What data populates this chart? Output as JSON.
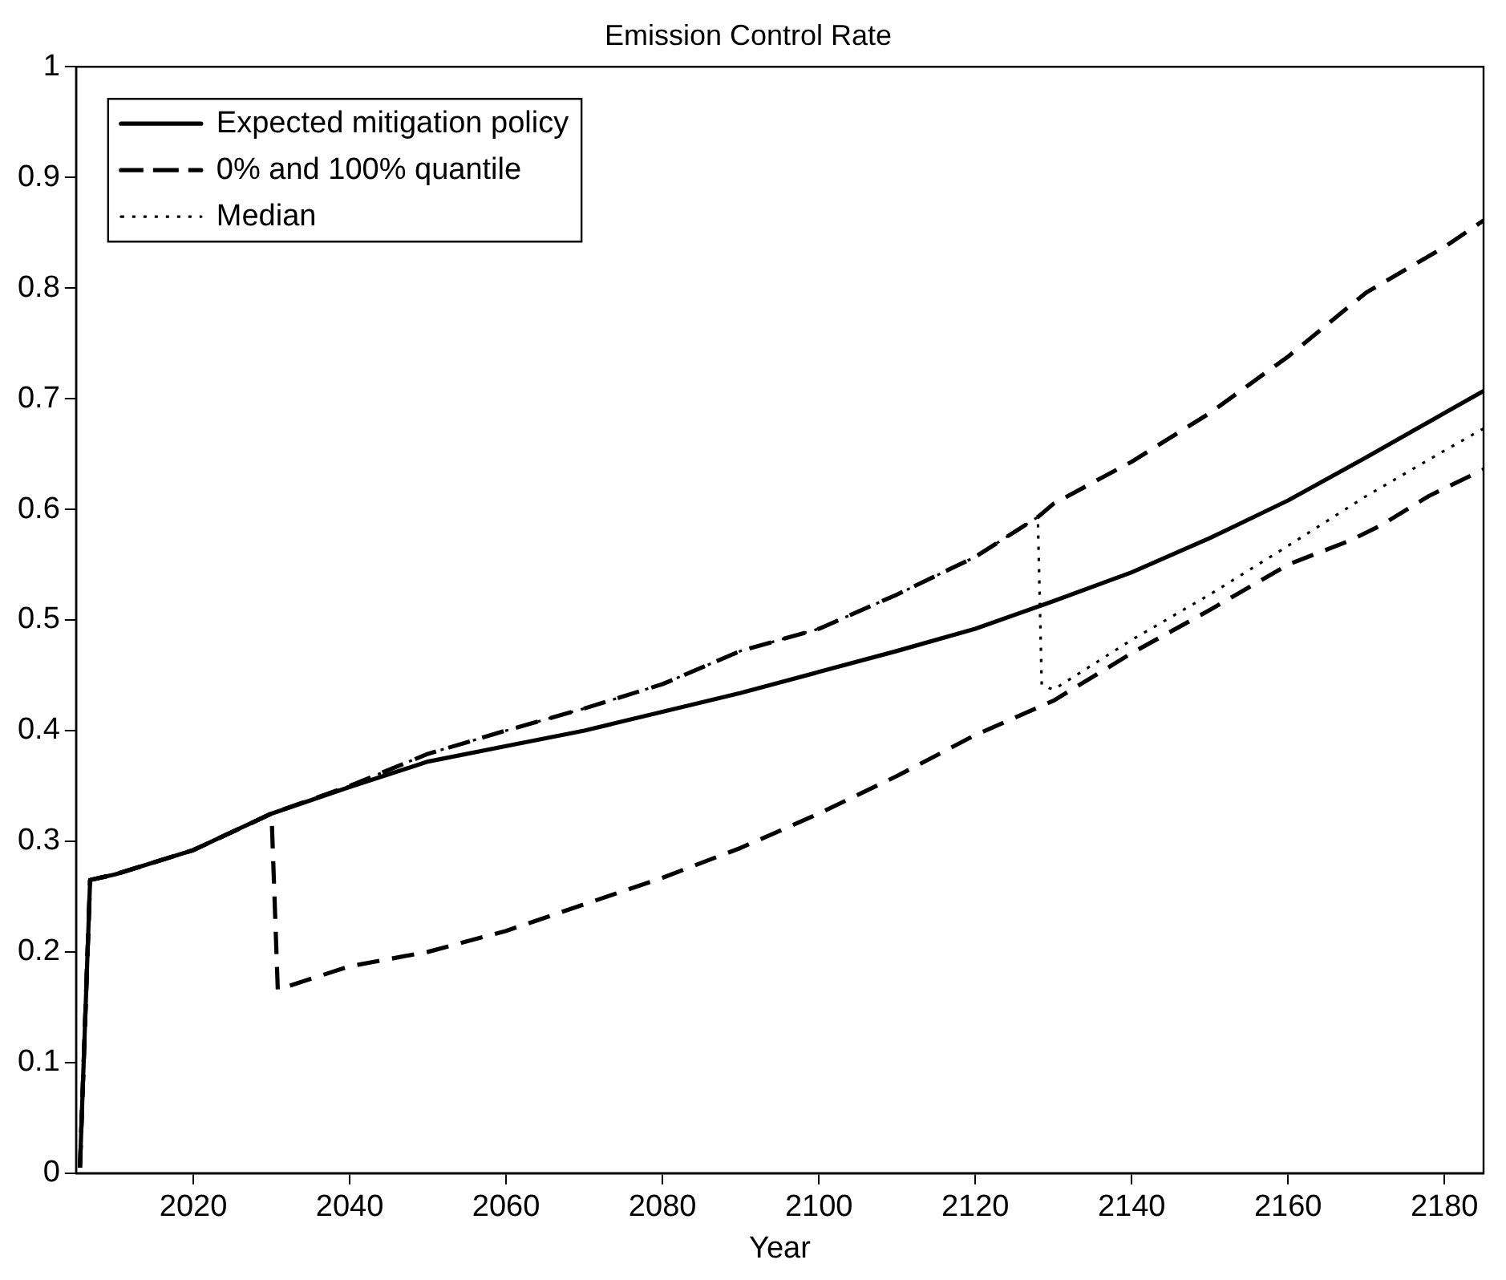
{
  "chart_data": {
    "type": "line",
    "title": "Emission Control Rate",
    "xlabel": "Year",
    "xlim": [
      2005,
      2185
    ],
    "xticks": [
      2020,
      2040,
      2060,
      2080,
      2100,
      2120,
      2140,
      2160,
      2180
    ],
    "ylim": [
      0,
      1
    ],
    "yticks": [
      0,
      0.1,
      0.2,
      0.3,
      0.4,
      0.5,
      0.6,
      0.7,
      0.8,
      0.9,
      1
    ],
    "grid": false,
    "legend": "top left",
    "marker": "none",
    "series": [
      {
        "name": "Expected mitigation policy",
        "color": "#000000",
        "line_style": "solid",
        "x": [
          2005.5,
          2006.8,
          2010,
          2020,
          2030,
          2040,
          2050,
          2060,
          2070,
          2080,
          2090,
          2100,
          2110,
          2120,
          2130,
          2140,
          2150,
          2160,
          2170,
          2180,
          2185
        ],
        "values": [
          0.005,
          0.265,
          0.27,
          0.292,
          0.325,
          0.349,
          0.372,
          0.386,
          0.4,
          0.417,
          0.434,
          0.453,
          0.472,
          0.492,
          0.517,
          0.543,
          0.574,
          0.608,
          0.647,
          0.687,
          0.707
        ]
      },
      {
        "name": "0% and 100% quantile",
        "color": "#000000",
        "line_style": "dashed",
        "x": [
          2005.5,
          2006.8,
          2010,
          2020,
          2030,
          2040,
          2050,
          2060,
          2070,
          2080,
          2090,
          2100,
          2110,
          2120,
          2128,
          2130,
          2140,
          2150,
          2160,
          2170,
          2180,
          2185
        ],
        "values": [
          0.005,
          0.265,
          0.27,
          0.292,
          0.325,
          0.35,
          0.379,
          0.4,
          0.42,
          0.442,
          0.472,
          0.492,
          0.523,
          0.557,
          0.593,
          0.605,
          0.643,
          0.687,
          0.738,
          0.796,
          0.837,
          0.861
        ]
      },
      {
        "color": "#000000",
        "line_style": "dashed",
        "x": [
          2005.5,
          2006.8,
          2010,
          2020,
          2030,
          2030.8,
          2040,
          2050,
          2060,
          2070,
          2080,
          2090,
          2100,
          2110,
          2120,
          2130,
          2140,
          2150,
          2160,
          2168,
          2172,
          2178,
          2185
        ],
        "values": [
          0.005,
          0.265,
          0.27,
          0.292,
          0.325,
          0.166,
          0.187,
          0.2,
          0.219,
          0.243,
          0.267,
          0.294,
          0.325,
          0.359,
          0.396,
          0.427,
          0.47,
          0.509,
          0.55,
          0.572,
          0.586,
          0.612,
          0.636
        ]
      },
      {
        "name": "Median",
        "color": "#000000",
        "line_style": "dotted",
        "x": [
          2005.5,
          2006.8,
          2010,
          2020,
          2030,
          2040,
          2050,
          2060,
          2070,
          2080,
          2090,
          2100,
          2110,
          2120,
          2128,
          2128.5,
          2130,
          2140,
          2150,
          2160,
          2170,
          2180,
          2185
        ],
        "values": [
          0.005,
          0.265,
          0.27,
          0.292,
          0.325,
          0.35,
          0.379,
          0.4,
          0.42,
          0.442,
          0.472,
          0.492,
          0.523,
          0.557,
          0.593,
          0.441,
          0.437,
          0.482,
          0.523,
          0.567,
          0.612,
          0.653,
          0.673
        ]
      }
    ]
  }
}
